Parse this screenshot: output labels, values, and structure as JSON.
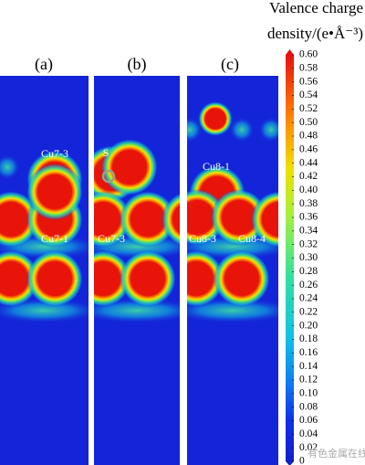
{
  "chart_data": {
    "type": "charge-density-map",
    "colorbar_title_lines": [
      "Valence charge",
      "density/(e•Å⁻³)"
    ],
    "colorbar_lim": [
      0,
      0.6
    ],
    "colorbar_ticks": [
      0,
      0.02,
      0.04,
      0.06,
      0.08,
      {
        "value": 0.1,
        "label": "0.10"
      },
      0.12,
      0.14,
      0.16,
      0.18,
      {
        "value": 0.2,
        "label": "0.20"
      },
      0.22,
      0.24,
      0.26,
      0.28,
      {
        "value": 0.3,
        "label": "0.30"
      },
      0.32,
      0.34,
      0.36,
      0.38,
      {
        "value": 0.4,
        "label": "0.40"
      },
      0.42,
      0.44,
      0.46,
      0.48,
      {
        "value": 0.5,
        "label": "0.50"
      },
      0.52,
      0.54,
      0.56,
      0.58,
      {
        "value": 0.6,
        "label": "0.60"
      }
    ],
    "panels": [
      {
        "label": "(a)",
        "atom_labels": [
          "Cu7-3",
          "Cu7-1"
        ]
      },
      {
        "label": "(b)",
        "atom_labels": [
          "S",
          "Cu7-3"
        ]
      },
      {
        "label": "(c)",
        "atom_labels": [
          "Cu8-1",
          "Cu8-3",
          "Cu8-4"
        ]
      }
    ],
    "watermark": "有色金属在线"
  }
}
